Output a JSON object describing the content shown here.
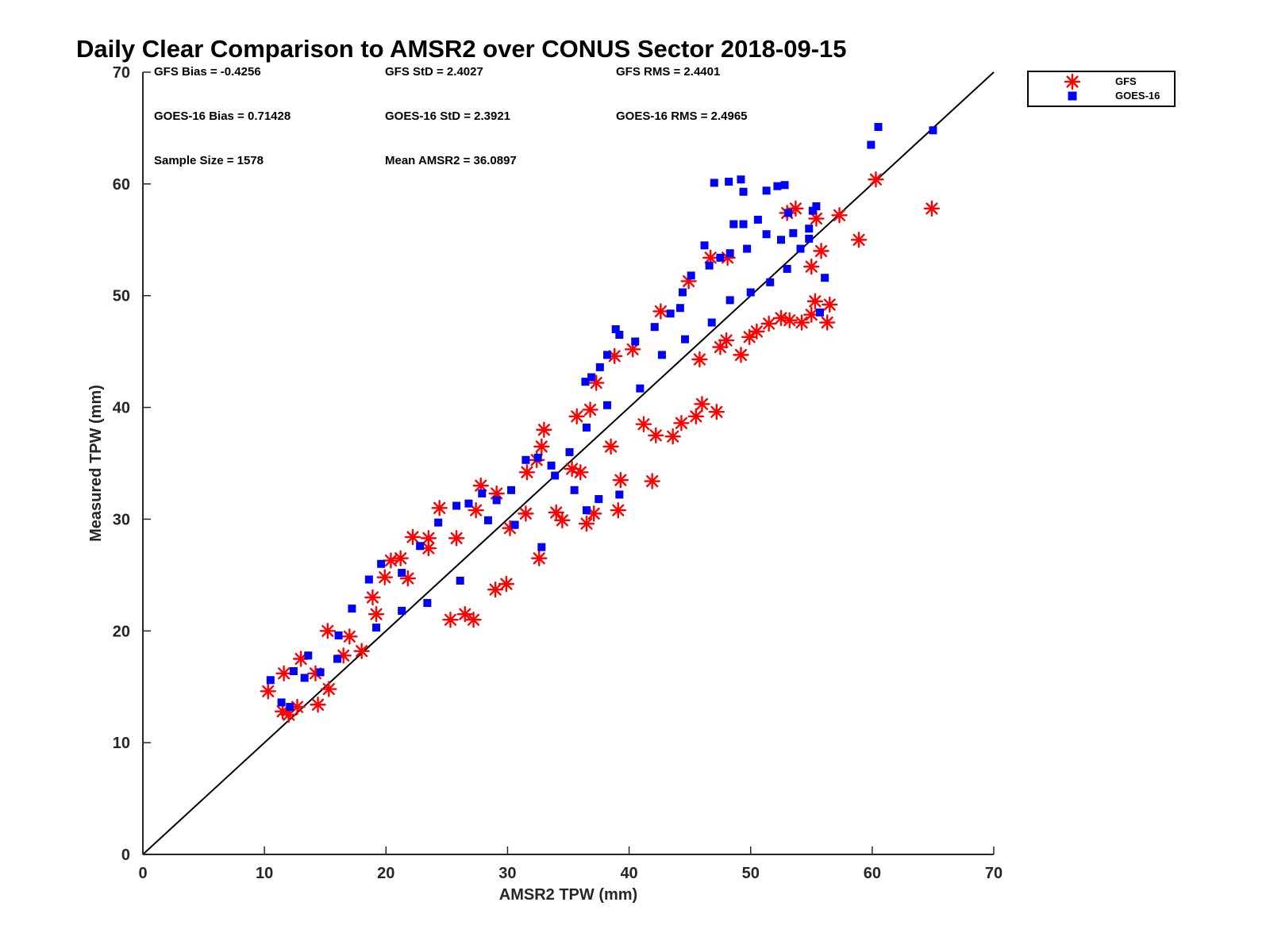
{
  "chart_data": {
    "type": "scatter",
    "title": "Daily Clear Comparison to AMSR2 over CONUS Sector 2018-09-15",
    "xlabel": "AMSR2 TPW (mm)",
    "ylabel": "Measured TPW (mm)",
    "xlim": [
      0,
      70
    ],
    "ylim": [
      0,
      70
    ],
    "xticks": [
      "0",
      "10",
      "20",
      "30",
      "40",
      "50",
      "60",
      "70"
    ],
    "yticks": [
      "0",
      "10",
      "20",
      "30",
      "40",
      "50",
      "60",
      "70"
    ],
    "reference_line": {
      "name": "1:1 line",
      "from": [
        0,
        0
      ],
      "to": [
        70,
        70
      ],
      "color": "#000000"
    },
    "legend": {
      "position": "outside-top-right",
      "entries": [
        "GFS",
        "GOES-16"
      ]
    },
    "stats": [
      {
        "label": "GFS Bias = -0.4256"
      },
      {
        "label": "GFS StD = 2.4027"
      },
      {
        "label": "GFS RMS = 2.4401"
      },
      {
        "label": "GOES-16 Bias = 0.71428"
      },
      {
        "label": "GOES-16 StD = 2.3921"
      },
      {
        "label": "GOES-16 RMS = 2.4965"
      },
      {
        "label": "Sample Size = 1578"
      },
      {
        "label": "Mean AMSR2 = 36.0897"
      }
    ],
    "series": [
      {
        "name": "GFS",
        "marker": "asterisk",
        "color": "#ff0000",
        "points": [
          [
            10.3,
            14.6
          ],
          [
            11.5,
            12.8
          ],
          [
            12.0,
            12.5
          ],
          [
            12.7,
            13.2
          ],
          [
            14.4,
            13.4
          ],
          [
            15.3,
            14.8
          ],
          [
            11.6,
            16.2
          ],
          [
            13.0,
            17.5
          ],
          [
            15.2,
            20.0
          ],
          [
            16.5,
            17.8
          ],
          [
            18.0,
            18.2
          ],
          [
            18.9,
            23.0
          ],
          [
            19.9,
            24.8
          ],
          [
            20.4,
            26.3
          ],
          [
            21.2,
            26.5
          ],
          [
            22.2,
            28.4
          ],
          [
            23.5,
            28.3
          ],
          [
            24.4,
            31.0
          ],
          [
            25.3,
            21.0
          ],
          [
            26.5,
            21.5
          ],
          [
            27.2,
            21.0
          ],
          [
            27.4,
            30.8
          ],
          [
            27.8,
            33.0
          ],
          [
            29.0,
            23.7
          ],
          [
            29.9,
            24.2
          ],
          [
            30.2,
            29.2
          ],
          [
            31.5,
            30.5
          ],
          [
            32.6,
            26.5
          ],
          [
            32.8,
            36.5
          ],
          [
            33.0,
            38.0
          ],
          [
            32.4,
            35.3
          ],
          [
            34.0,
            30.6
          ],
          [
            34.5,
            29.9
          ],
          [
            35.3,
            34.5
          ],
          [
            36.0,
            34.2
          ],
          [
            36.5,
            29.6
          ],
          [
            37.1,
            30.5
          ],
          [
            36.8,
            39.8
          ],
          [
            38.5,
            36.5
          ],
          [
            39.3,
            33.5
          ],
          [
            41.9,
            33.4
          ],
          [
            39.1,
            30.8
          ],
          [
            41.2,
            38.5
          ],
          [
            42.2,
            37.5
          ],
          [
            43.6,
            37.4
          ],
          [
            44.3,
            38.6
          ],
          [
            45.5,
            39.2
          ],
          [
            46.0,
            40.3
          ],
          [
            47.2,
            39.6
          ],
          [
            45.8,
            44.3
          ],
          [
            47.5,
            45.4
          ],
          [
            48.0,
            46.0
          ],
          [
            49.2,
            44.7
          ],
          [
            49.9,
            46.3
          ],
          [
            50.5,
            46.8
          ],
          [
            51.5,
            47.5
          ],
          [
            52.5,
            48.0
          ],
          [
            53.2,
            47.8
          ],
          [
            54.2,
            47.6
          ],
          [
            55.0,
            48.3
          ],
          [
            56.3,
            47.6
          ],
          [
            55.3,
            49.5
          ],
          [
            56.5,
            49.2
          ],
          [
            55.0,
            52.6
          ],
          [
            55.8,
            54.0
          ],
          [
            53.0,
            57.4
          ],
          [
            53.7,
            57.8
          ],
          [
            55.4,
            56.9
          ],
          [
            57.3,
            57.2
          ],
          [
            58.9,
            55.0
          ],
          [
            60.3,
            60.4
          ],
          [
            64.9,
            57.8
          ],
          [
            46.7,
            53.4
          ],
          [
            48.1,
            53.4
          ],
          [
            44.9,
            51.3
          ],
          [
            42.6,
            48.6
          ],
          [
            40.3,
            45.2
          ],
          [
            38.8,
            44.6
          ],
          [
            37.3,
            42.2
          ],
          [
            35.7,
            39.2
          ],
          [
            31.6,
            34.2
          ],
          [
            29.1,
            32.3
          ],
          [
            25.8,
            28.3
          ],
          [
            23.5,
            27.4
          ],
          [
            21.8,
            24.7
          ],
          [
            19.2,
            21.5
          ],
          [
            17.0,
            19.5
          ],
          [
            14.2,
            16.2
          ]
        ]
      },
      {
        "name": "GOES-16",
        "marker": "square",
        "color": "#0000ff",
        "points": [
          [
            10.5,
            15.6
          ],
          [
            11.4,
            13.6
          ],
          [
            12.1,
            13.2
          ],
          [
            12.4,
            16.4
          ],
          [
            13.3,
            15.8
          ],
          [
            13.6,
            17.8
          ],
          [
            16.1,
            19.6
          ],
          [
            17.2,
            22.0
          ],
          [
            18.6,
            24.6
          ],
          [
            19.6,
            26.0
          ],
          [
            21.3,
            25.2
          ],
          [
            22.8,
            27.6
          ],
          [
            24.3,
            29.7
          ],
          [
            25.8,
            31.2
          ],
          [
            26.8,
            31.4
          ],
          [
            27.9,
            32.3
          ],
          [
            29.1,
            31.7
          ],
          [
            30.3,
            32.6
          ],
          [
            31.5,
            35.3
          ],
          [
            32.8,
            27.5
          ],
          [
            32.5,
            35.5
          ],
          [
            33.6,
            34.8
          ],
          [
            35.1,
            36.0
          ],
          [
            36.5,
            38.2
          ],
          [
            36.4,
            42.3
          ],
          [
            36.9,
            42.7
          ],
          [
            37.6,
            43.6
          ],
          [
            38.2,
            44.7
          ],
          [
            38.9,
            47.0
          ],
          [
            39.2,
            46.5
          ],
          [
            39.2,
            32.2
          ],
          [
            36.5,
            30.8
          ],
          [
            37.5,
            31.8
          ],
          [
            40.5,
            45.9
          ],
          [
            42.1,
            47.2
          ],
          [
            43.4,
            48.4
          ],
          [
            44.2,
            48.9
          ],
          [
            44.4,
            50.3
          ],
          [
            45.1,
            51.8
          ],
          [
            46.2,
            54.5
          ],
          [
            46.6,
            52.7
          ],
          [
            47.5,
            53.4
          ],
          [
            48.3,
            53.8
          ],
          [
            48.6,
            56.4
          ],
          [
            49.4,
            56.4
          ],
          [
            49.7,
            54.2
          ],
          [
            50.6,
            56.8
          ],
          [
            51.3,
            55.5
          ],
          [
            52.5,
            55.0
          ],
          [
            53.5,
            55.6
          ],
          [
            54.1,
            54.2
          ],
          [
            54.8,
            55.1
          ],
          [
            56.1,
            51.6
          ],
          [
            55.7,
            48.5
          ],
          [
            53.1,
            57.4
          ],
          [
            55.4,
            58.0
          ],
          [
            55.1,
            57.6
          ],
          [
            54.8,
            56.0
          ],
          [
            47.0,
            60.1
          ],
          [
            48.2,
            60.2
          ],
          [
            49.2,
            60.4
          ],
          [
            49.4,
            59.3
          ],
          [
            51.3,
            59.4
          ],
          [
            52.2,
            59.8
          ],
          [
            52.8,
            59.9
          ],
          [
            59.9,
            63.5
          ],
          [
            60.5,
            65.1
          ],
          [
            65.0,
            64.8
          ],
          [
            38.2,
            40.2
          ],
          [
            35.5,
            32.6
          ],
          [
            28.4,
            29.9
          ],
          [
            26.1,
            24.5
          ],
          [
            23.4,
            22.5
          ],
          [
            21.3,
            21.8
          ],
          [
            19.2,
            20.3
          ],
          [
            16.0,
            17.5
          ],
          [
            14.6,
            16.3
          ],
          [
            40.9,
            41.7
          ],
          [
            42.7,
            44.7
          ],
          [
            44.6,
            46.1
          ],
          [
            46.8,
            47.6
          ],
          [
            48.3,
            49.6
          ],
          [
            50.0,
            50.3
          ],
          [
            51.6,
            51.2
          ],
          [
            53.0,
            52.4
          ],
          [
            33.9,
            33.9
          ],
          [
            30.6,
            29.5
          ]
        ]
      }
    ]
  }
}
